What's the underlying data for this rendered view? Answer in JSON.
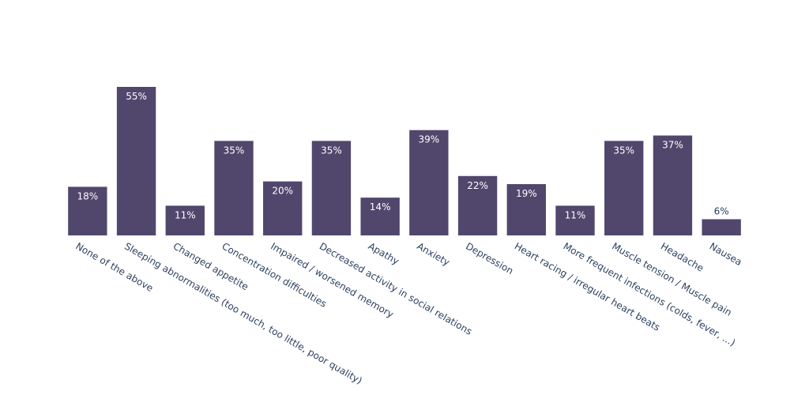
{
  "chart_data": {
    "type": "bar",
    "title": "",
    "xlabel": "",
    "ylabel": "",
    "ylim": [
      0,
      55
    ],
    "grid": false,
    "legend": "none",
    "bar_color": "#51476d",
    "categories": [
      "None of the above",
      "Sleeping abnormalities (too much, too little, poor quality)",
      "Changed appetite",
      "Concentration difficulties",
      "Impaired / worsened memory",
      "Decreased  activity in social relations",
      "Apathy",
      "Anxiety",
      "Depression",
      "Heart racing / irregular heart beats",
      "More frequent infections (colds, fever, ...)",
      "Muscle tension / Muscle pain",
      "Headache",
      "Nausea"
    ],
    "values": [
      18,
      55,
      11,
      35,
      20,
      35,
      14,
      39,
      22,
      19,
      11,
      35,
      37,
      6
    ],
    "data_labels": [
      "18%",
      "55%",
      "11%",
      "35%",
      "20%",
      "35%",
      "14%",
      "39%",
      "22%",
      "19%",
      "11%",
      "35%",
      "37%",
      "6%"
    ]
  }
}
